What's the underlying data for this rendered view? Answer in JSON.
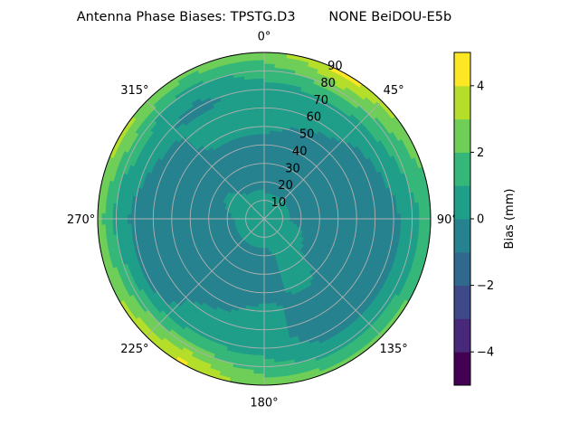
{
  "chart_data": {
    "type": "heatmap",
    "subtype": "polar-contourf",
    "title": "Antenna Phase Biases: TPSTG.D3        NONE BeiDOU-E5b",
    "theta_direction": "clockwise",
    "theta_zero": "top",
    "theta_tick_labels": [
      "0°",
      "45°",
      "90°",
      "135°",
      "180°",
      "225°",
      "270°",
      "315°"
    ],
    "theta_ticks": [
      0,
      45,
      90,
      135,
      180,
      225,
      270,
      315
    ],
    "r_range": [
      0,
      90
    ],
    "r_ticks": [
      10,
      20,
      30,
      40,
      50,
      60,
      70,
      80,
      90
    ],
    "r_tick_labels": [
      "10",
      "20",
      "30",
      "40",
      "50",
      "60",
      "70",
      "80",
      "90"
    ],
    "grid": true,
    "azimuths": [
      0,
      30,
      60,
      90,
      120,
      150,
      180,
      210,
      240,
      270,
      300,
      330
    ],
    "radii": [
      0,
      10,
      20,
      30,
      40,
      50,
      60,
      70,
      80,
      90
    ],
    "values": [
      [
        0.5,
        0.3,
        -0.3,
        -0.5,
        -0.5,
        0.3,
        0.5,
        0.5,
        1.5,
        2.5
      ],
      [
        0.5,
        0.3,
        -0.4,
        -0.6,
        -0.5,
        -0.3,
        0.4,
        0.6,
        2.5,
        4.5
      ],
      [
        0.5,
        0.3,
        -0.4,
        -0.6,
        -0.6,
        -0.5,
        -0.4,
        0.4,
        1.5,
        2.5
      ],
      [
        0.5,
        0.3,
        -0.4,
        -0.6,
        -0.6,
        -0.6,
        -0.5,
        -0.3,
        0.5,
        1.5
      ],
      [
        0.5,
        0.3,
        0.3,
        -0.4,
        -0.5,
        -0.6,
        -0.5,
        -0.3,
        0.5,
        2.2
      ],
      [
        0.5,
        0.3,
        0.3,
        0.4,
        0.3,
        -0.4,
        -0.6,
        -0.5,
        0.5,
        2.5
      ],
      [
        0.5,
        0.3,
        -0.3,
        -0.5,
        -0.4,
        0.3,
        0.4,
        0.5,
        1.5,
        2.5
      ],
      [
        0.5,
        0.3,
        -0.3,
        -0.5,
        -0.5,
        -0.4,
        0.3,
        0.6,
        2.5,
        4.3
      ],
      [
        0.5,
        0.3,
        -0.3,
        -0.5,
        -0.5,
        -0.6,
        -0.5,
        -0.3,
        1.5,
        3.2
      ],
      [
        0.5,
        0.4,
        -0.2,
        -0.5,
        -0.6,
        -0.6,
        -0.5,
        -0.3,
        0.6,
        2.5
      ],
      [
        0.5,
        0.5,
        0.3,
        -0.4,
        -0.5,
        -0.5,
        -0.4,
        0.4,
        1.5,
        3.5
      ],
      [
        0.5,
        0.3,
        -0.3,
        -0.5,
        -0.4,
        0.3,
        0.4,
        -0.3,
        0.6,
        2.5
      ]
    ],
    "colorbar": {
      "label": "Bias (mm)",
      "levels": [
        -5,
        -4,
        -3,
        -2,
        -1,
        0,
        1,
        2,
        3,
        4,
        5
      ],
      "ticks": [
        4,
        2,
        0,
        -2,
        -4
      ],
      "tick_labels": [
        "4",
        "2",
        "0",
        "−2",
        "−4"
      ],
      "colormap": "viridis",
      "colors": [
        "#440154",
        "#482878",
        "#3e4989",
        "#31688e",
        "#26828e",
        "#1f9e89",
        "#35b779",
        "#6ece58",
        "#b5de2b",
        "#fde725"
      ]
    }
  }
}
